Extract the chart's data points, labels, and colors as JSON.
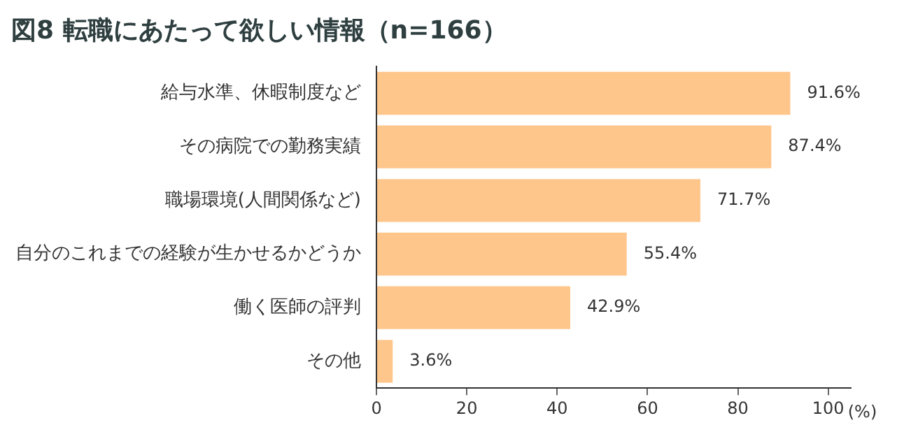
{
  "chart_data": {
    "type": "bar",
    "orientation": "horizontal",
    "title": "図8 転職にあたって欲しい情報（n=166）",
    "categories": [
      "給与水準、休暇制度など",
      "その病院での勤務実績",
      "職場環境(人間関係など)",
      "自分のこれまでの経験が生かせるかどうか",
      "働く医師の評判",
      "その他"
    ],
    "values": [
      91.6,
      87.4,
      71.7,
      55.4,
      42.9,
      3.6
    ],
    "value_labels": [
      "91.6%",
      "87.4%",
      "71.7%",
      "55.4%",
      "42.9%",
      "3.6%"
    ],
    "color": "#ffc68c",
    "xlabel": "(%)",
    "xlim": [
      0,
      105
    ],
    "xticks": [
      0,
      20,
      40,
      60,
      80,
      100
    ],
    "grid": false,
    "legend": false
  }
}
